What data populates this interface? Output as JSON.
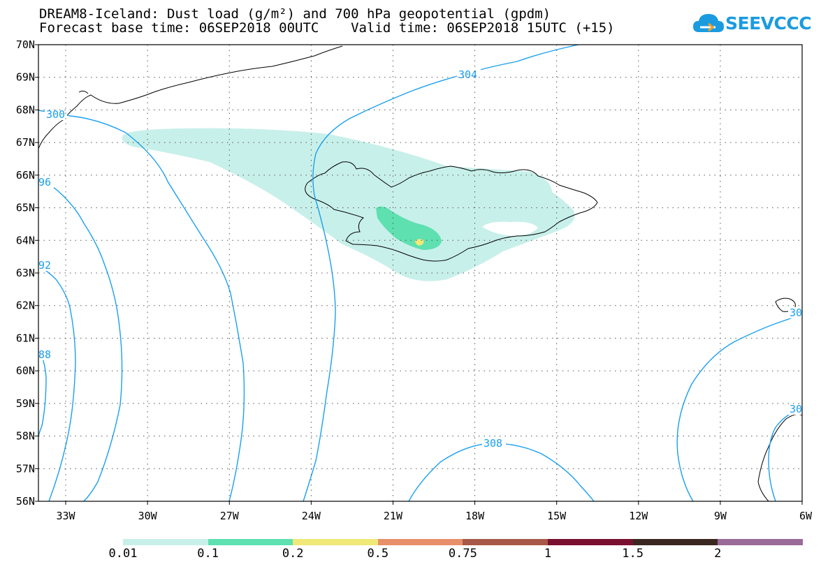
{
  "title_line1": "DREAM8-Iceland: Dust load (g/m²) and 700 hPa geopotential (gpdm)",
  "title_line2": "Forecast base time: 06SEP2018 00UTC    Valid time: 06SEP2018 15UTC (+15)",
  "logo_text": "SEEVCCC",
  "lat_labels": [
    "70N",
    "69N",
    "68N",
    "67N",
    "66N",
    "65N",
    "64N",
    "63N",
    "62N",
    "61N",
    "60N",
    "59N",
    "58N",
    "57N",
    "56N"
  ],
  "lon_labels": [
    "33W",
    "30W",
    "27W",
    "24W",
    "21W",
    "18W",
    "15W",
    "12W",
    "9W",
    "6W"
  ],
  "contour_labels": {
    "c300": "300",
    "c304": "304",
    "c296": "96",
    "c292": "92",
    "c288": "88",
    "c308": "308",
    "c30a": "30",
    "c30b": "30"
  },
  "legend": {
    "thresholds": [
      "0.01",
      "0.1",
      "0.2",
      "0.5",
      "0.75",
      "1",
      "1.5",
      "2"
    ],
    "colors": [
      "#c8f0ea",
      "#5ee0b0",
      "#f0e878",
      "#e8906a",
      "#a85848",
      "#7a1030",
      "#3a2820",
      "#9a6a98"
    ]
  },
  "colors": {
    "contour": "#1aa0f0",
    "dust_low": "#c8f0ea",
    "dust_mid": "#5ee0b0",
    "dust_high": "#f0e878"
  }
}
